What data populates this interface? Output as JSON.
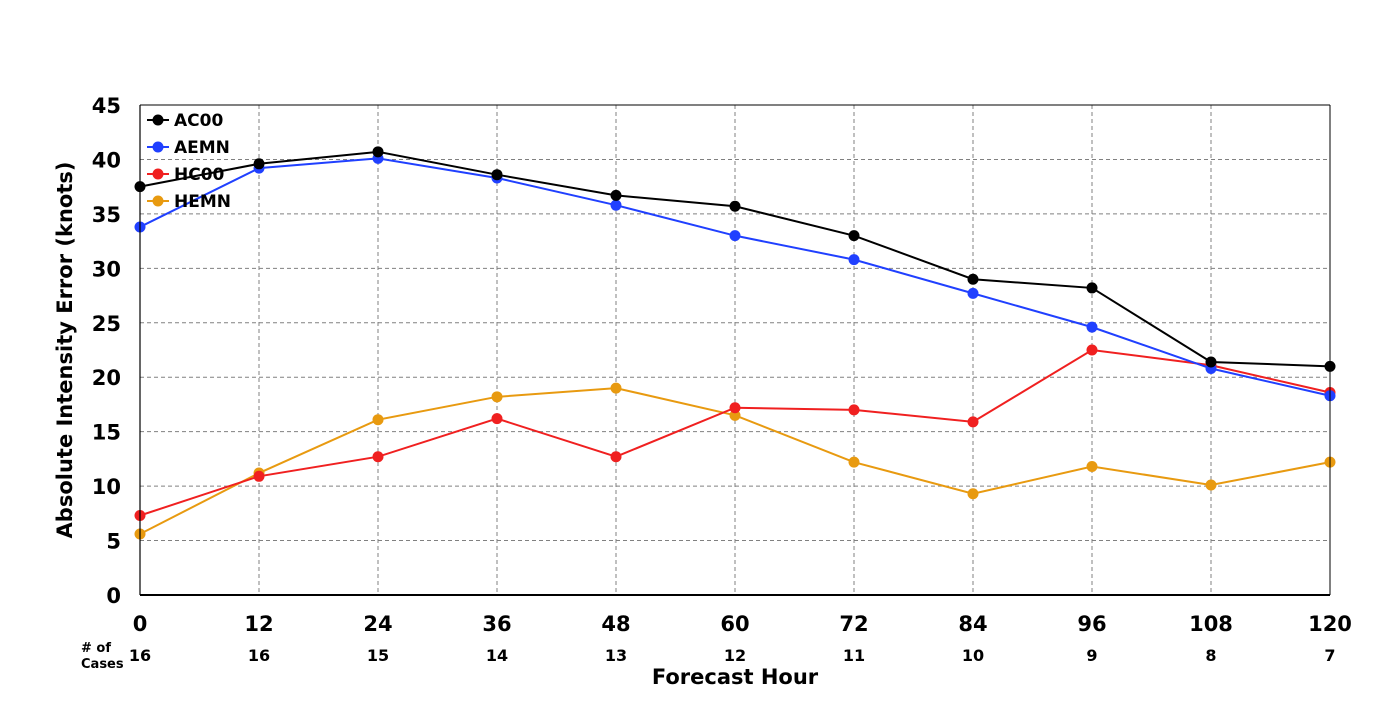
{
  "chart_data": {
    "type": "line",
    "title": "",
    "xlabel": "Forecast Hour",
    "ylabel": "Absolute Intensity Error (knots)",
    "x": [
      0,
      12,
      24,
      36,
      48,
      60,
      72,
      84,
      96,
      108,
      120
    ],
    "xlim": [
      0,
      120
    ],
    "ylim": [
      0,
      45
    ],
    "yticks": [
      0,
      5,
      10,
      15,
      20,
      25,
      30,
      35,
      40,
      45
    ],
    "xticks": [
      0,
      12,
      24,
      36,
      48,
      60,
      72,
      84,
      96,
      108,
      120
    ],
    "grid": true,
    "legend_position": "top-left",
    "cases_label": "# of Cases",
    "cases_label_lines": [
      "# of",
      "Cases"
    ],
    "cases": [
      16,
      16,
      15,
      14,
      13,
      12,
      11,
      10,
      9,
      8,
      7
    ],
    "series": [
      {
        "name": "AC00",
        "color": "#000000",
        "values": [
          37.5,
          39.6,
          40.7,
          38.6,
          36.7,
          35.7,
          33.0,
          29.0,
          28.2,
          21.4,
          21.0
        ]
      },
      {
        "name": "AEMN",
        "color": "#2040ff",
        "values": [
          33.8,
          39.2,
          40.1,
          38.3,
          35.8,
          33.0,
          30.8,
          27.7,
          24.6,
          20.8,
          18.3
        ]
      },
      {
        "name": "HC00",
        "color": "#f02020",
        "values": [
          7.3,
          10.9,
          12.7,
          16.2,
          12.7,
          17.2,
          17.0,
          15.9,
          22.5,
          21.1,
          18.6
        ]
      },
      {
        "name": "HEMN",
        "color": "#e89a10",
        "values": [
          5.6,
          11.2,
          16.1,
          18.2,
          19.0,
          16.5,
          12.2,
          9.3,
          11.8,
          10.1,
          12.2
        ]
      }
    ]
  }
}
